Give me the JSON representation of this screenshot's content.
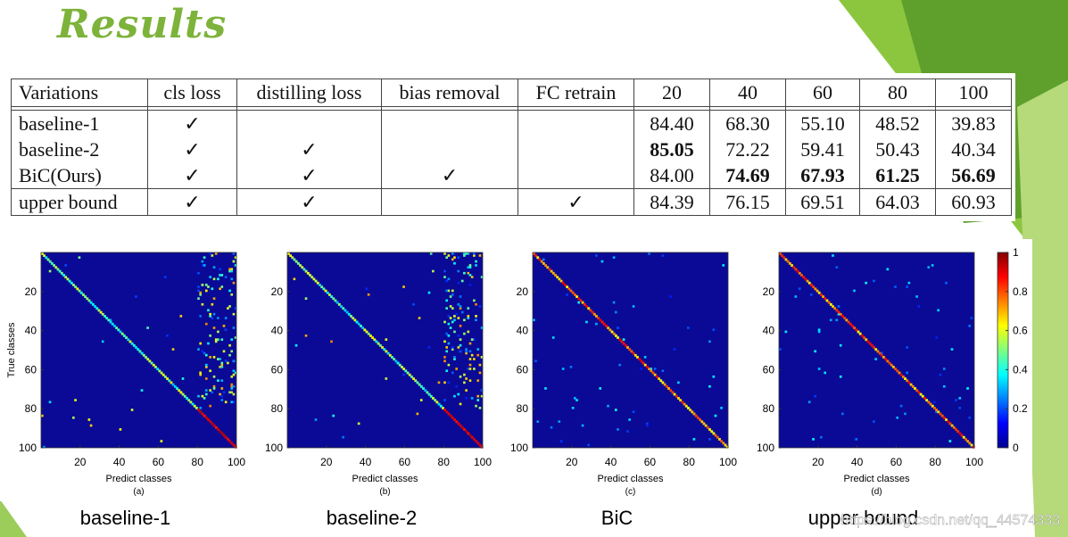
{
  "title": "Results",
  "table": {
    "header": [
      "Variations",
      "cls loss",
      "distilling loss",
      "bias removal",
      "FC retrain",
      "20",
      "40",
      "60",
      "80",
      "100"
    ],
    "rows": [
      {
        "cells": [
          "baseline-1",
          "✓",
          null,
          null,
          null,
          "84.40",
          "68.30",
          "55.10",
          "48.52",
          "39.83"
        ],
        "bold": []
      },
      {
        "cells": [
          "baseline-2",
          "✓",
          "✓",
          null,
          null,
          "85.05",
          "72.22",
          "59.41",
          "50.43",
          "40.34"
        ],
        "bold": [
          5
        ]
      },
      {
        "cells": [
          "BiC(Ours)",
          "✓",
          "✓",
          "✓",
          null,
          "84.00",
          "74.69",
          "67.93",
          "61.25",
          "56.69"
        ],
        "bold": [
          6,
          7,
          8,
          9
        ]
      },
      {
        "cells": [
          "upper bound",
          "✓",
          "✓",
          null,
          "✓",
          "84.39",
          "76.15",
          "69.51",
          "64.03",
          "60.93"
        ],
        "bold": []
      }
    ]
  },
  "heatmaps": {
    "xlabel": "Predict classes",
    "ylabel": "True classes",
    "lim": [
      0,
      100
    ],
    "ticks": [
      20,
      40,
      60,
      80,
      100
    ],
    "figures": [
      {
        "sublabel": "(a)",
        "caption": "baseline-1"
      },
      {
        "sublabel": "(b)",
        "caption": "baseline-2"
      },
      {
        "sublabel": "(c)",
        "caption": "BiC"
      },
      {
        "sublabel": "(d)",
        "caption": "upper bound"
      }
    ],
    "colorbar": {
      "lim": [
        0,
        1
      ],
      "ticks": [
        0,
        0.2,
        0.4,
        0.6,
        0.8,
        1
      ]
    }
  },
  "watermark": "https://blog.csdn.net/qq_44574333"
}
